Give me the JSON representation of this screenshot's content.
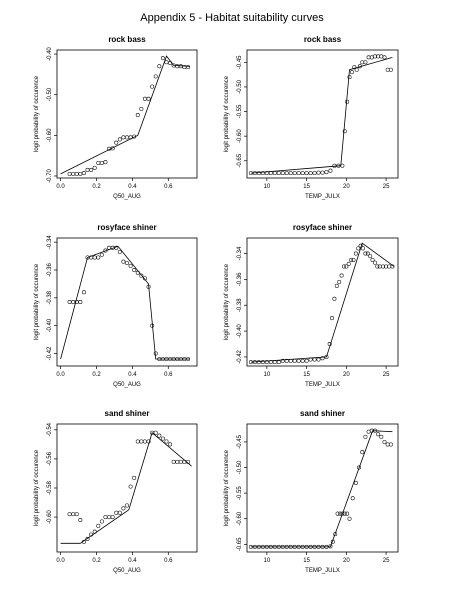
{
  "page_title": "Appendix 5 - Habitat suitability curves",
  "chart_data": [
    {
      "type": "scatter",
      "title": "rock bass",
      "xlabel": "Q50_AUG",
      "ylabel": "logit probability of occurence",
      "xlim": [
        -0.02,
        0.76
      ],
      "ylim": [
        -0.705,
        -0.39
      ],
      "xticks": [
        0.0,
        0.2,
        0.4,
        0.6
      ],
      "yticks": [
        -0.7,
        -0.6,
        -0.5,
        -0.4
      ],
      "tick_labels_x": [
        "0.0",
        "0.2",
        "0.4",
        "0.6"
      ],
      "tick_labels_y": [
        "-0.70",
        "-0.60",
        "-0.50",
        "-0.40"
      ],
      "series": [
        {
          "kind": "points",
          "x": [
            0.05,
            0.07,
            0.09,
            0.11,
            0.13,
            0.15,
            0.17,
            0.19,
            0.21,
            0.23,
            0.25,
            0.27,
            0.29,
            0.31,
            0.33,
            0.35,
            0.37,
            0.39,
            0.41,
            0.43,
            0.45,
            0.47,
            0.49,
            0.51,
            0.53,
            0.55,
            0.57,
            0.59,
            0.61,
            0.63,
            0.65,
            0.67,
            0.69,
            0.71
          ],
          "y": [
            -0.695,
            -0.695,
            -0.695,
            -0.695,
            -0.693,
            -0.685,
            -0.685,
            -0.68,
            -0.668,
            -0.668,
            -0.666,
            -0.633,
            -0.632,
            -0.618,
            -0.61,
            -0.605,
            -0.605,
            -0.605,
            -0.603,
            -0.55,
            -0.535,
            -0.51,
            -0.51,
            -0.48,
            -0.455,
            -0.43,
            -0.41,
            -0.42,
            -0.422,
            -0.428,
            -0.43,
            -0.43,
            -0.432,
            -0.432
          ]
        },
        {
          "kind": "line",
          "x": [
            0.0,
            0.43,
            0.59,
            0.63,
            0.72
          ],
          "y": [
            -0.695,
            -0.6,
            -0.405,
            -0.428,
            -0.43
          ]
        }
      ]
    },
    {
      "type": "scatter",
      "title": "rock bass",
      "xlabel": "TEMP_JULX",
      "ylabel": "logit probability of occurence",
      "xlim": [
        7.5,
        26.5
      ],
      "ylim": [
        -0.685,
        -0.425
      ],
      "xticks": [
        10,
        15,
        20,
        25
      ],
      "yticks": [
        -0.65,
        -0.6,
        -0.55,
        -0.5,
        -0.45
      ],
      "tick_labels_x": [
        "10",
        "15",
        "20",
        "25"
      ],
      "tick_labels_y": [
        "-0.65",
        "-0.60",
        "-0.55",
        "-0.50",
        "-0.45"
      ],
      "series": [
        {
          "kind": "points",
          "x": [
            8,
            8.5,
            9,
            9.5,
            10,
            10.5,
            11,
            11.5,
            12,
            12.5,
            13,
            13.5,
            14,
            14.5,
            15,
            15.5,
            16,
            16.5,
            17,
            17.5,
            18,
            18.5,
            19,
            19.5,
            19.8,
            20.1,
            20.4,
            20.7,
            21,
            21.3,
            21.7,
            22,
            22.4,
            22.8,
            23.2,
            23.6,
            24,
            24.4,
            24.8,
            25.2,
            25.6
          ],
          "y": [
            -0.675,
            -0.675,
            -0.675,
            -0.675,
            -0.675,
            -0.675,
            -0.675,
            -0.675,
            -0.675,
            -0.675,
            -0.675,
            -0.675,
            -0.675,
            -0.675,
            -0.675,
            -0.675,
            -0.675,
            -0.674,
            -0.674,
            -0.673,
            -0.67,
            -0.66,
            -0.66,
            -0.66,
            -0.59,
            -0.53,
            -0.48,
            -0.47,
            -0.46,
            -0.465,
            -0.458,
            -0.45,
            -0.45,
            -0.44,
            -0.44,
            -0.438,
            -0.438,
            -0.438,
            -0.44,
            -0.465,
            -0.465
          ]
        },
        {
          "kind": "line",
          "x": [
            8,
            19.3,
            20.4,
            25.8
          ],
          "y": [
            -0.675,
            -0.66,
            -0.465,
            -0.44
          ]
        }
      ]
    },
    {
      "type": "scatter",
      "title": "rosyface shiner",
      "xlabel": "Q50_AUG",
      "ylabel": "logit probability of occurence",
      "xlim": [
        -0.02,
        0.76
      ],
      "ylim": [
        -0.429,
        -0.337
      ],
      "xticks": [
        0.0,
        0.2,
        0.4,
        0.6
      ],
      "yticks": [
        -0.42,
        -0.4,
        -0.38,
        -0.36,
        -0.34
      ],
      "tick_labels_x": [
        "0.0",
        "0.2",
        "0.4",
        "0.6"
      ],
      "tick_labels_y": [
        "-0.42",
        "-0.40",
        "-0.38",
        "-0.36",
        "-0.34"
      ],
      "series": [
        {
          "kind": "points",
          "x": [
            0.05,
            0.07,
            0.09,
            0.11,
            0.13,
            0.15,
            0.17,
            0.19,
            0.21,
            0.23,
            0.25,
            0.27,
            0.29,
            0.31,
            0.33,
            0.35,
            0.37,
            0.39,
            0.41,
            0.43,
            0.45,
            0.47,
            0.49,
            0.51,
            0.53,
            0.55,
            0.57,
            0.59,
            0.61,
            0.63,
            0.65,
            0.67,
            0.69,
            0.71
          ],
          "y": [
            -0.383,
            -0.383,
            -0.383,
            -0.383,
            -0.376,
            -0.351,
            -0.351,
            -0.351,
            -0.351,
            -0.349,
            -0.346,
            -0.344,
            -0.344,
            -0.344,
            -0.347,
            -0.354,
            -0.355,
            -0.357,
            -0.36,
            -0.362,
            -0.364,
            -0.366,
            -0.372,
            -0.4,
            -0.42,
            -0.424,
            -0.424,
            -0.424,
            -0.424,
            -0.424,
            -0.424,
            -0.424,
            -0.424,
            -0.424
          ]
        },
        {
          "kind": "line",
          "x": [
            0.0,
            0.15,
            0.32,
            0.49,
            0.53,
            0.72
          ],
          "y": [
            -0.424,
            -0.351,
            -0.343,
            -0.37,
            -0.424,
            -0.424
          ]
        }
      ]
    },
    {
      "type": "scatter",
      "title": "rosyface shiner",
      "xlabel": "TEMP_JULX",
      "ylabel": "logit probability of occurence",
      "xlim": [
        7.5,
        26.5
      ],
      "ylim": [
        -0.427,
        -0.328
      ],
      "xticks": [
        10,
        15,
        20,
        25
      ],
      "yticks": [
        -0.42,
        -0.4,
        -0.38,
        -0.36,
        -0.34
      ],
      "tick_labels_x": [
        "10",
        "15",
        "20",
        "25"
      ],
      "tick_labels_y": [
        "-0.42",
        "-0.40",
        "-0.38",
        "-0.36",
        "-0.34"
      ],
      "series": [
        {
          "kind": "points",
          "x": [
            8,
            8.5,
            9,
            9.5,
            10,
            10.5,
            11,
            11.5,
            12,
            12.5,
            13,
            13.5,
            14,
            14.5,
            15,
            15.5,
            16,
            16.5,
            17,
            17.5,
            17.9,
            18.2,
            18.5,
            18.8,
            19.1,
            19.4,
            19.7,
            20,
            20.3,
            20.6,
            20.9,
            21.2,
            21.5,
            21.8,
            22.1,
            22.4,
            22.7,
            23,
            23.3,
            23.6,
            23.9,
            24.2,
            24.6,
            25,
            25.4,
            25.8
          ],
          "y": [
            -0.424,
            -0.424,
            -0.424,
            -0.424,
            -0.424,
            -0.424,
            -0.424,
            -0.424,
            -0.423,
            -0.423,
            -0.423,
            -0.423,
            -0.423,
            -0.423,
            -0.423,
            -0.422,
            -0.422,
            -0.422,
            -0.421,
            -0.42,
            -0.41,
            -0.39,
            -0.375,
            -0.365,
            -0.362,
            -0.357,
            -0.35,
            -0.35,
            -0.348,
            -0.345,
            -0.345,
            -0.34,
            -0.336,
            -0.334,
            -0.336,
            -0.34,
            -0.34,
            -0.342,
            -0.345,
            -0.347,
            -0.35,
            -0.35,
            -0.35,
            -0.35,
            -0.35,
            -0.35
          ]
        },
        {
          "kind": "line",
          "x": [
            8,
            17.5,
            22,
            26
          ],
          "y": [
            -0.424,
            -0.42,
            -0.332,
            -0.35
          ]
        }
      ]
    },
    {
      "type": "scatter",
      "title": "sand shiner",
      "xlabel": "Q50_AUG",
      "ylabel": "logit probability of occurence",
      "xlim": [
        -0.02,
        0.76
      ],
      "ylim": [
        -0.624,
        -0.536
      ],
      "xticks": [
        0.0,
        0.2,
        0.4,
        0.6
      ],
      "yticks": [
        -0.6,
        -0.58,
        -0.56,
        -0.54
      ],
      "tick_labels_x": [
        "0.0",
        "0.2",
        "0.4",
        "0.6"
      ],
      "tick_labels_y": [
        "-0.60",
        "-0.58",
        "-0.56",
        "-0.54"
      ],
      "series": [
        {
          "kind": "points",
          "x": [
            0.05,
            0.07,
            0.09,
            0.11,
            0.13,
            0.15,
            0.17,
            0.19,
            0.21,
            0.23,
            0.25,
            0.27,
            0.29,
            0.31,
            0.33,
            0.35,
            0.37,
            0.39,
            0.41,
            0.43,
            0.45,
            0.47,
            0.49,
            0.51,
            0.53,
            0.55,
            0.57,
            0.59,
            0.61,
            0.63,
            0.65,
            0.67,
            0.69,
            0.71
          ],
          "y": [
            -0.598,
            -0.598,
            -0.598,
            -0.602,
            -0.617,
            -0.615,
            -0.612,
            -0.61,
            -0.606,
            -0.603,
            -0.6,
            -0.6,
            -0.6,
            -0.597,
            -0.597,
            -0.594,
            -0.592,
            -0.579,
            -0.573,
            -0.548,
            -0.548,
            -0.548,
            -0.548,
            -0.542,
            -0.542,
            -0.544,
            -0.546,
            -0.548,
            -0.55,
            -0.562,
            -0.562,
            -0.562,
            -0.562,
            -0.562
          ]
        },
        {
          "kind": "line",
          "x": [
            0.0,
            0.11,
            0.38,
            0.51,
            0.73
          ],
          "y": [
            -0.618,
            -0.618,
            -0.595,
            -0.542,
            -0.565
          ]
        }
      ]
    },
    {
      "type": "scatter",
      "title": "sand shiner",
      "xlabel": "TEMP_JULX",
      "ylabel": "logit probability of occurence",
      "xlim": [
        7.5,
        26.5
      ],
      "ylim": [
        -0.665,
        -0.415
      ],
      "xticks": [
        10,
        15,
        20,
        25
      ],
      "yticks": [
        -0.65,
        -0.6,
        -0.55,
        -0.5,
        -0.45
      ],
      "tick_labels_x": [
        "10",
        "15",
        "20",
        "25"
      ],
      "tick_labels_y": [
        "-0.65",
        "-0.60",
        "-0.55",
        "-0.50",
        "-0.45"
      ],
      "series": [
        {
          "kind": "points",
          "x": [
            8,
            8.5,
            9,
            9.5,
            10,
            10.5,
            11,
            11.5,
            12,
            12.5,
            13,
            13.5,
            14,
            14.5,
            15,
            15.5,
            16,
            16.5,
            17,
            17.5,
            18,
            18.3,
            18.6,
            18.9,
            19.2,
            19.5,
            19.8,
            20.1,
            20.4,
            20.8,
            21.2,
            21.6,
            22,
            22.4,
            22.8,
            23.2,
            23.6,
            24,
            24.4,
            24.8,
            25.2,
            25.6
          ],
          "y": [
            -0.655,
            -0.655,
            -0.655,
            -0.655,
            -0.655,
            -0.655,
            -0.655,
            -0.655,
            -0.655,
            -0.655,
            -0.655,
            -0.655,
            -0.655,
            -0.655,
            -0.655,
            -0.655,
            -0.655,
            -0.655,
            -0.655,
            -0.655,
            -0.654,
            -0.645,
            -0.63,
            -0.59,
            -0.59,
            -0.59,
            -0.59,
            -0.59,
            -0.6,
            -0.56,
            -0.53,
            -0.5,
            -0.47,
            -0.44,
            -0.43,
            -0.428,
            -0.428,
            -0.435,
            -0.44,
            -0.45,
            -0.455,
            -0.455
          ]
        },
        {
          "kind": "line",
          "x": [
            8,
            18,
            23.3,
            25.8
          ],
          "y": [
            -0.655,
            -0.655,
            -0.428,
            -0.43
          ]
        }
      ]
    }
  ]
}
